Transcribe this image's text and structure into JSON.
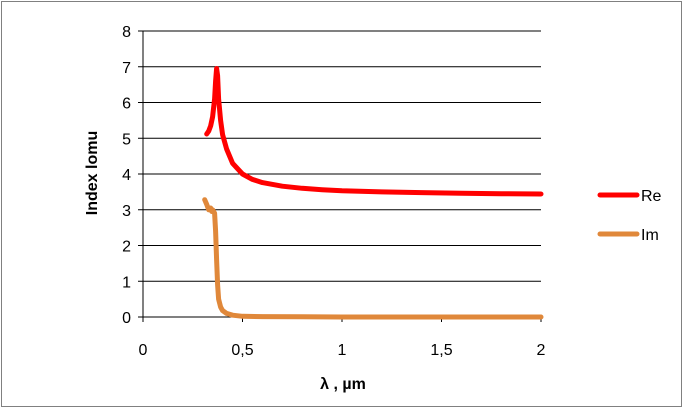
{
  "chart_data": {
    "type": "line",
    "title": "",
    "xlabel": "λ , µm",
    "ylabel": "Index lomu",
    "xlim": [
      0,
      2
    ],
    "ylim": [
      0,
      8
    ],
    "x_ticks": [
      {
        "value": 0,
        "label": "0"
      },
      {
        "value": 0.5,
        "label": "0,5"
      },
      {
        "value": 1,
        "label": "1"
      },
      {
        "value": 1.5,
        "label": "1,5"
      },
      {
        "value": 2,
        "label": "2"
      }
    ],
    "y_ticks": [
      {
        "value": 0,
        "label": "0"
      },
      {
        "value": 1,
        "label": "1"
      },
      {
        "value": 2,
        "label": "2"
      },
      {
        "value": 3,
        "label": "3"
      },
      {
        "value": 4,
        "label": "4"
      },
      {
        "value": 5,
        "label": "5"
      },
      {
        "value": 6,
        "label": "6"
      },
      {
        "value": 7,
        "label": "7"
      },
      {
        "value": 8,
        "label": "8"
      }
    ],
    "grid": "horizontal",
    "legend_position": "right",
    "series": [
      {
        "name": "Re",
        "color": "#ff0000",
        "points": [
          [
            0.32,
            5.12
          ],
          [
            0.33,
            5.2
          ],
          [
            0.34,
            5.35
          ],
          [
            0.35,
            5.6
          ],
          [
            0.36,
            6.1
          ],
          [
            0.365,
            6.6
          ],
          [
            0.37,
            6.95
          ],
          [
            0.375,
            6.75
          ],
          [
            0.38,
            6.1
          ],
          [
            0.39,
            5.5
          ],
          [
            0.4,
            5.1
          ],
          [
            0.42,
            4.7
          ],
          [
            0.45,
            4.3
          ],
          [
            0.5,
            4.0
          ],
          [
            0.55,
            3.85
          ],
          [
            0.6,
            3.76
          ],
          [
            0.7,
            3.66
          ],
          [
            0.8,
            3.6
          ],
          [
            0.9,
            3.56
          ],
          [
            1.0,
            3.53
          ],
          [
            1.2,
            3.5
          ],
          [
            1.4,
            3.48
          ],
          [
            1.6,
            3.46
          ],
          [
            1.8,
            3.45
          ],
          [
            2.0,
            3.44
          ]
        ]
      },
      {
        "name": "Im",
        "color": "#e0883a",
        "points": [
          [
            0.31,
            3.28
          ],
          [
            0.32,
            3.15
          ],
          [
            0.33,
            3.0
          ],
          [
            0.34,
            3.05
          ],
          [
            0.345,
            2.95
          ],
          [
            0.35,
            3.0
          ],
          [
            0.36,
            2.9
          ],
          [
            0.365,
            2.4
          ],
          [
            0.37,
            1.6
          ],
          [
            0.375,
            0.9
          ],
          [
            0.38,
            0.5
          ],
          [
            0.39,
            0.28
          ],
          [
            0.4,
            0.18
          ],
          [
            0.42,
            0.1
          ],
          [
            0.45,
            0.05
          ],
          [
            0.5,
            0.02
          ],
          [
            0.6,
            0.01
          ],
          [
            0.8,
            0.005
          ],
          [
            1.0,
            0.0
          ],
          [
            1.5,
            0.0
          ],
          [
            2.0,
            0.0
          ]
        ]
      }
    ]
  }
}
